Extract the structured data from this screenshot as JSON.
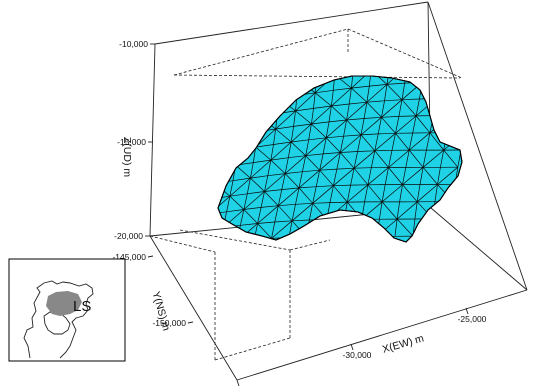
{
  "chart_data": {
    "type": "surface3d",
    "title": "",
    "zlabel": "Z(UD) m",
    "ylabel": "Y(NS) m",
    "xlabel": "X(EW) m",
    "zticks": [
      "-10,000",
      "-15,000",
      "-20,000"
    ],
    "yticks": [
      "-145,000",
      "-150,000"
    ],
    "xticks": [
      "-35,000",
      "-30,000",
      "-25,000"
    ],
    "surface_color": "#1fd2e6",
    "mesh_color": "#000000",
    "grid": false,
    "inset": {
      "label": "LS",
      "highlight_color": "#888888"
    }
  }
}
